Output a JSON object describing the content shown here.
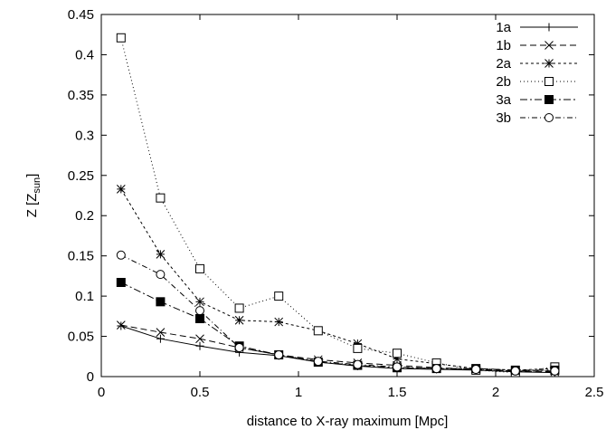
{
  "chart_data": {
    "type": "line",
    "title": "",
    "xlabel": "distance to X-ray maximum [Mpc]",
    "ylabel": {
      "main": "Z [Z",
      "sub": "sun",
      "end": "]"
    },
    "xlim": [
      0,
      2.5
    ],
    "ylim": [
      0,
      0.45
    ],
    "xticks": [
      0,
      0.5,
      1,
      1.5,
      2,
      2.5
    ],
    "xtick_labels": [
      "0",
      "0.5",
      "1",
      "1.5",
      "2",
      "2.5"
    ],
    "yticks": [
      0,
      0.05,
      0.1,
      0.15,
      0.2,
      0.25,
      0.3,
      0.35,
      0.4,
      0.45
    ],
    "ytick_labels": [
      "0",
      "0.05",
      "0.1",
      "0.15",
      "0.2",
      "0.25",
      "0.3",
      "0.35",
      "0.4",
      "0.45"
    ],
    "grid": false,
    "legend_position": "top-right",
    "x": [
      0.1,
      0.3,
      0.5,
      0.7,
      0.9,
      1.1,
      1.3,
      1.5,
      1.7,
      1.9,
      2.1,
      2.3
    ],
    "series": [
      {
        "name": "1a",
        "marker": "plus",
        "dash": "",
        "values": [
          0.063,
          0.047,
          0.038,
          0.03,
          0.026,
          0.018,
          0.013,
          0.01,
          0.009,
          0.008,
          0.006,
          0.005
        ]
      },
      {
        "name": "1b",
        "marker": "cross",
        "dash": "7,4",
        "values": [
          0.064,
          0.055,
          0.047,
          0.036,
          0.027,
          0.021,
          0.017,
          0.014,
          0.011,
          0.009,
          0.007,
          0.006
        ]
      },
      {
        "name": "2a",
        "marker": "asterisk",
        "dash": "3,3",
        "values": [
          0.233,
          0.152,
          0.093,
          0.07,
          0.068,
          0.057,
          0.041,
          0.022,
          0.016,
          0.01,
          0.008,
          0.01
        ]
      },
      {
        "name": "2b",
        "marker": "square-open",
        "dash": "1,3",
        "values": [
          0.421,
          0.222,
          0.134,
          0.085,
          0.1,
          0.057,
          0.035,
          0.029,
          0.017,
          0.008,
          0.005,
          0.012
        ]
      },
      {
        "name": "3a",
        "marker": "square-filled",
        "dash": "8,3,2,3",
        "values": [
          0.117,
          0.093,
          0.072,
          0.038,
          0.027,
          0.018,
          0.014,
          0.011,
          0.01,
          0.01,
          0.008,
          0.008
        ]
      },
      {
        "name": "3b",
        "marker": "circle-open",
        "dash": "6,3,1,3",
        "values": [
          0.151,
          0.127,
          0.082,
          0.036,
          0.027,
          0.019,
          0.015,
          0.012,
          0.01,
          0.009,
          0.007,
          0.007
        ]
      }
    ]
  }
}
